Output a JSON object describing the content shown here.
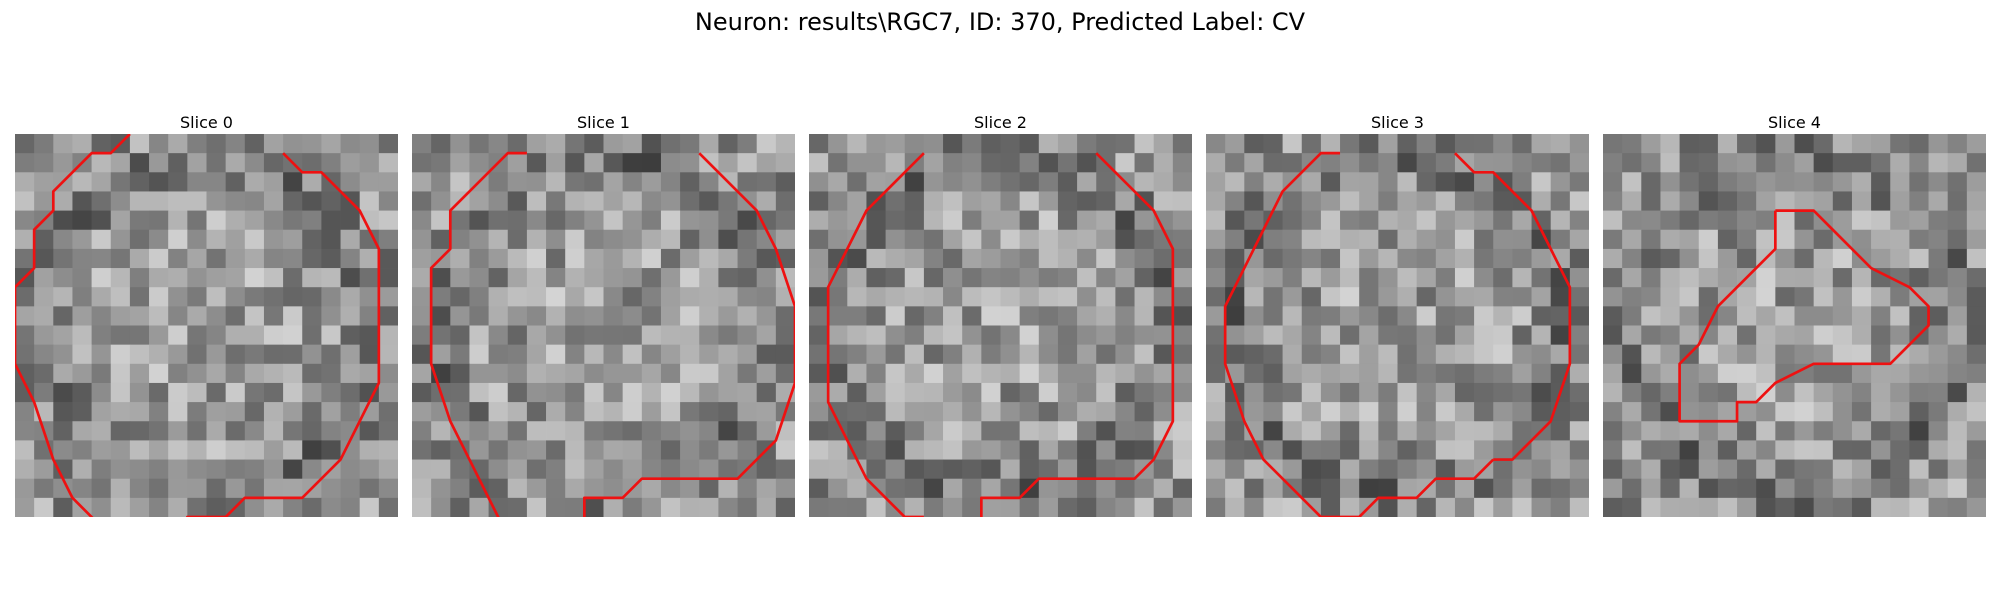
{
  "figure": {
    "title": "Neuron: results\\RGC7, ID: 370, Predicted Label: CV"
  },
  "panels": [
    {
      "title": "Slice 0",
      "seed": 11,
      "overlay_color": "#ee1111",
      "contour": [
        [
          5.5,
          -0.5
        ],
        [
          4.5,
          0.5
        ],
        [
          3.5,
          0.5
        ],
        [
          2.5,
          1.5
        ],
        [
          1.5,
          2.5
        ],
        [
          1.5,
          3.5
        ],
        [
          0.5,
          4.5
        ],
        [
          0.5,
          6.5
        ],
        [
          -0.5,
          7.5
        ],
        [
          -0.5,
          11.5
        ],
        [
          0.5,
          13.5
        ],
        [
          1.5,
          16.5
        ],
        [
          2.5,
          18.5
        ],
        [
          4.5,
          20.5
        ],
        [
          5.5,
          21.5
        ],
        [
          6.5,
          21.5
        ]
      ],
      "contour2": [
        [
          13.5,
          0.5
        ],
        [
          14.5,
          1.5
        ],
        [
          15.5,
          1.5
        ],
        [
          17.5,
          3.5
        ],
        [
          18.5,
          5.5
        ],
        [
          18.5,
          12.5
        ],
        [
          17.5,
          14.5
        ],
        [
          16.5,
          16.5
        ],
        [
          15.5,
          17.5
        ],
        [
          14.5,
          18.5
        ],
        [
          11.5,
          18.5
        ],
        [
          10.5,
          19.5
        ],
        [
          8.5,
          19.5
        ],
        [
          8.5,
          20.5
        ]
      ]
    },
    {
      "title": "Slice 1",
      "seed": 23,
      "overlay_color": "#ee1111",
      "contour": [
        [
          5.5,
          0.5
        ],
        [
          4.5,
          0.5
        ],
        [
          3.5,
          1.5
        ],
        [
          2.5,
          2.5
        ],
        [
          1.5,
          3.5
        ],
        [
          1.5,
          5.5
        ],
        [
          0.5,
          6.5
        ],
        [
          0.5,
          11.5
        ],
        [
          1.5,
          14.5
        ],
        [
          2.5,
          16.5
        ],
        [
          3.5,
          18.5
        ],
        [
          4.5,
          20.5
        ]
      ],
      "contour2": [
        [
          14.5,
          0.5
        ],
        [
          15.5,
          1.5
        ],
        [
          17.5,
          3.5
        ],
        [
          18.5,
          5.5
        ],
        [
          19.5,
          8.5
        ],
        [
          19.5,
          12.5
        ],
        [
          18.5,
          15.5
        ],
        [
          17.5,
          16.5
        ],
        [
          16.5,
          17.5
        ],
        [
          11.5,
          17.5
        ],
        [
          10.5,
          18.5
        ],
        [
          8.5,
          18.5
        ],
        [
          8.5,
          19.5
        ]
      ]
    },
    {
      "title": "Slice 2",
      "seed": 37,
      "overlay_color": "#ee1111",
      "contour": [
        [
          5.5,
          0.5
        ],
        [
          4.5,
          1.5
        ],
        [
          3.5,
          2.5
        ],
        [
          2.5,
          3.5
        ],
        [
          1.5,
          5.5
        ],
        [
          0.5,
          7.5
        ],
        [
          0.5,
          10.5
        ],
        [
          0.5,
          13.5
        ],
        [
          1.5,
          15.5
        ],
        [
          2.5,
          17.5
        ],
        [
          3.5,
          18.5
        ],
        [
          4.5,
          19.5
        ],
        [
          5.5,
          19.5
        ]
      ],
      "contour2": [
        [
          14.5,
          0.5
        ],
        [
          15.5,
          1.5
        ],
        [
          17.5,
          3.5
        ],
        [
          18.5,
          5.5
        ],
        [
          18.5,
          14.5
        ],
        [
          17.5,
          16.5
        ],
        [
          16.5,
          17.5
        ],
        [
          11.5,
          17.5
        ],
        [
          10.5,
          18.5
        ],
        [
          8.5,
          18.5
        ],
        [
          8.5,
          19.5
        ]
      ]
    },
    {
      "title": "Slice 3",
      "seed": 53,
      "overlay_color": "#ee1111",
      "contour": [
        [
          6.5,
          0.5
        ],
        [
          5.5,
          0.5
        ],
        [
          4.5,
          1.5
        ],
        [
          3.5,
          2.5
        ],
        [
          2.5,
          4.5
        ],
        [
          1.5,
          6.5
        ],
        [
          0.5,
          8.5
        ],
        [
          0.5,
          11.5
        ],
        [
          1.5,
          14.5
        ],
        [
          2.5,
          16.5
        ],
        [
          3.5,
          17.5
        ],
        [
          4.5,
          18.5
        ],
        [
          5.5,
          19.5
        ],
        [
          7.5,
          19.5
        ],
        [
          8.5,
          18.5
        ],
        [
          10.5,
          18.5
        ],
        [
          11.5,
          17.5
        ],
        [
          13.5,
          17.5
        ],
        [
          14.5,
          16.5
        ]
      ],
      "contour2": [
        [
          12.5,
          0.5
        ],
        [
          13.5,
          1.5
        ],
        [
          14.5,
          1.5
        ],
        [
          16.5,
          3.5
        ],
        [
          17.5,
          5.5
        ],
        [
          18.5,
          7.5
        ],
        [
          18.5,
          11.5
        ],
        [
          17.5,
          14.5
        ],
        [
          16.5,
          15.5
        ],
        [
          15.5,
          16.5
        ],
        [
          14.5,
          16.5
        ]
      ]
    },
    {
      "title": "Slice 4",
      "seed": 71,
      "overlay_color": "#ee1111",
      "contour": [
        [
          8.5,
          3.5
        ],
        [
          10.5,
          3.5
        ],
        [
          11.5,
          4.5
        ],
        [
          13.5,
          6.5
        ],
        [
          15.5,
          7.5
        ],
        [
          16.5,
          8.5
        ],
        [
          16.5,
          9.5
        ],
        [
          15.5,
          10.5
        ],
        [
          14.5,
          11.5
        ],
        [
          10.5,
          11.5
        ],
        [
          8.5,
          12.5
        ],
        [
          7.5,
          13.5
        ],
        [
          6.5,
          13.5
        ],
        [
          6.5,
          14.5
        ],
        [
          3.5,
          14.5
        ],
        [
          3.5,
          11.5
        ],
        [
          4.5,
          10.5
        ],
        [
          5.5,
          8.5
        ],
        [
          6.5,
          7.5
        ],
        [
          7.5,
          6.5
        ],
        [
          8.5,
          5.5
        ],
        [
          8.5,
          3.5
        ]
      ],
      "contour2": []
    }
  ]
}
